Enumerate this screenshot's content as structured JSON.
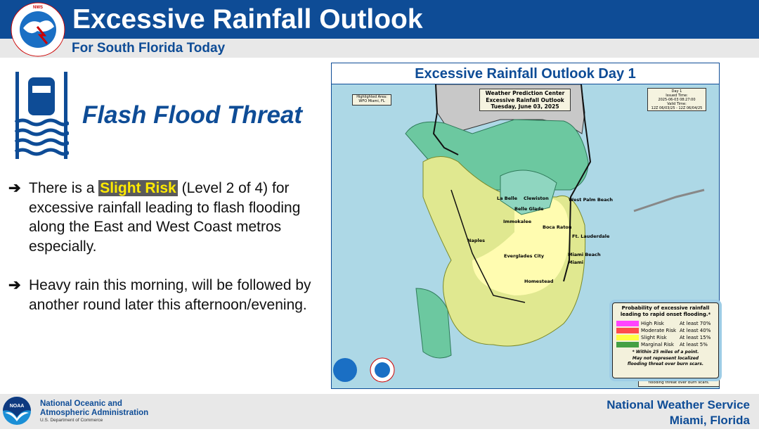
{
  "header": {
    "title": "Excessive Rainfall Outlook",
    "subtitle": "For South Florida Today",
    "logo_text": "NATIONAL WEATHER SERVICE"
  },
  "left": {
    "threat_title": "Flash Flood Threat",
    "bullets": [
      {
        "pre": "There is a ",
        "highlight": "Slight Risk",
        "post": " (Level 2 of 4) for excessive rainfall leading to flash flooding along the East and West Coast metros especially."
      },
      {
        "text": "Heavy rain this morning, will be followed by another round later this afternoon/evening."
      }
    ],
    "icons": {
      "bullet": "arrow-right-icon",
      "threat": "car-flood-icon"
    }
  },
  "map": {
    "title": "Excessive Rainfall Outlook Day 1",
    "highlighted_area": [
      "Highlighted Area:",
      "WFO Miami, FL"
    ],
    "center_box": [
      "Weather Prediction Center",
      "Excessive Rainfall Outlook",
      "Tuesday, June 03, 2025"
    ],
    "time_box": [
      "Day 1",
      "Issued Time:",
      "2025-06-03 08:27:00",
      "Valid Time:",
      "12Z 06/03/25 - 12Z 06/04/25"
    ],
    "cities": [
      "La Belle",
      "Clewiston",
      "Belle Glade",
      "Immokalee",
      "Boca Raton",
      "West Palm Beach",
      "Ft. Lauderdale",
      "Naples",
      "Everglades City",
      "Miami Beach",
      "Miami",
      "Homestead"
    ],
    "legend": {
      "title": "Probability of excessive rainfall leading to rapid onset flooding.*",
      "items": [
        {
          "label": "High Risk",
          "prob": "At least 70%",
          "color": "#ff44ff"
        },
        {
          "label": "Moderate Risk",
          "prob": "At least 40%",
          "color": "#ff4c4c"
        },
        {
          "label": "Slight Risk",
          "prob": "At least 15%",
          "color": "#ffff44"
        },
        {
          "label": "Marginal Risk",
          "prob": "At least  5%",
          "color": "#44a044"
        }
      ],
      "note": [
        "* Within 25 miles of a point.",
        "May not represent localized",
        "flooding threat over burn scars."
      ],
      "behind_text": "flooding threat over burn scars."
    },
    "colors": {
      "water": "#add8e6",
      "land": "#c8c8c8",
      "marginal": "#6cc8a0",
      "slight": "#e0e890",
      "slight_inner": "#fffcb0"
    }
  },
  "footer": {
    "org_line1": "National Oceanic and",
    "org_line2": "Atmospheric Administration",
    "dept": "U.S. Department of Commerce",
    "office_line1": "National Weather Service",
    "office_line2": "Miami, Florida",
    "noaa_logo": "NOAA"
  }
}
